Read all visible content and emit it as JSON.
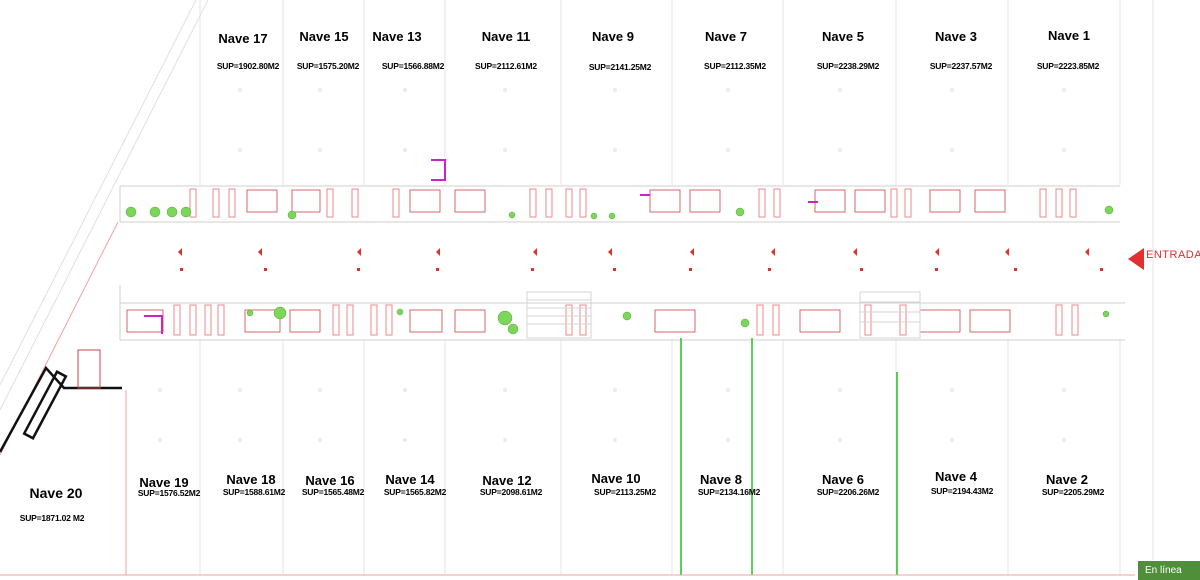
{
  "naves_top": [
    {
      "nombre": "Nave 17",
      "superficie": "SUP=1902.80M2"
    },
    {
      "nombre": "Nave 15",
      "superficie": "SUP=1575.20M2"
    },
    {
      "nombre": "Nave 13",
      "superficie": "SUP=1566.88M2"
    },
    {
      "nombre": "Nave 11",
      "superficie": "SUP=2112.61M2"
    },
    {
      "nombre": "Nave 9",
      "superficie": "SUP=2141.25M2"
    },
    {
      "nombre": "Nave 7",
      "superficie": "SUP=2112.35M2"
    },
    {
      "nombre": "Nave 5",
      "superficie": "SUP=2238.29M2"
    },
    {
      "nombre": "Nave 3",
      "superficie": "SUP=2237.57M2"
    },
    {
      "nombre": "Nave 1",
      "superficie": "SUP=2223.85M2"
    }
  ],
  "naves_bottom": [
    {
      "nombre": "Nave 19",
      "superficie": "SUP=1576.52M2"
    },
    {
      "nombre": "Nave 18",
      "superficie": "SUP=1588.61M2"
    },
    {
      "nombre": "Nave 16",
      "superficie": "SUP=1565.48M2"
    },
    {
      "nombre": "Nave 14",
      "superficie": "SUP=1565.82M2"
    },
    {
      "nombre": "Nave 12",
      "superficie": "SUP=2098.61M2"
    },
    {
      "nombre": "Nave 10",
      "superficie": "SUP=2113.25M2"
    },
    {
      "nombre": "Nave 8",
      "superficie": "SUP=2134.16M2"
    },
    {
      "nombre": "Nave 6",
      "superficie": "SUP=2206.26M2"
    },
    {
      "nombre": "Nave 4",
      "superficie": "SUP=2194.43M2"
    },
    {
      "nombre": "Nave 2",
      "superficie": "SUP=2205.29M2"
    }
  ],
  "nave_20": {
    "nombre": "Nave 20",
    "superficie": "SUP=1871.02 M2"
  },
  "entrada": "ENTRADA",
  "status": "En línea",
  "colors": {
    "wall": "#d9d9d9",
    "accent": "#e03030",
    "green": "#22c422",
    "magenta": "#cc22cc",
    "tree": "#7cd65a"
  }
}
